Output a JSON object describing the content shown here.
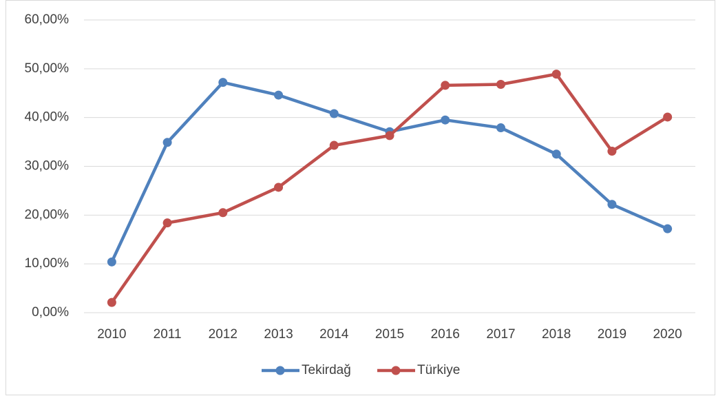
{
  "chart_data": {
    "type": "line",
    "categories": [
      "2010",
      "2011",
      "2012",
      "2013",
      "2014",
      "2015",
      "2016",
      "2017",
      "2018",
      "2019",
      "2020"
    ],
    "series": [
      {
        "name": "Tekirdağ",
        "color": "#4f81bd",
        "values": [
          10.4,
          34.9,
          47.2,
          44.6,
          40.8,
          37.1,
          39.5,
          37.9,
          32.5,
          22.2,
          17.2
        ]
      },
      {
        "name": "Türkiye",
        "color": "#c0504d",
        "values": [
          2.1,
          18.4,
          20.5,
          25.7,
          34.3,
          36.3,
          46.6,
          46.8,
          48.9,
          33.1,
          40.1
        ]
      }
    ],
    "ylim": [
      0,
      60
    ],
    "yticks": [
      {
        "value": 0,
        "label": "0,00%"
      },
      {
        "value": 10,
        "label": "10,00%"
      },
      {
        "value": 20,
        "label": "20,00%"
      },
      {
        "value": 30,
        "label": "30,00%"
      },
      {
        "value": 40,
        "label": "40,00%"
      },
      {
        "value": 50,
        "label": "50,00%"
      },
      {
        "value": 60,
        "label": "60,00%"
      }
    ],
    "grid": true,
    "legend": "bottom"
  }
}
